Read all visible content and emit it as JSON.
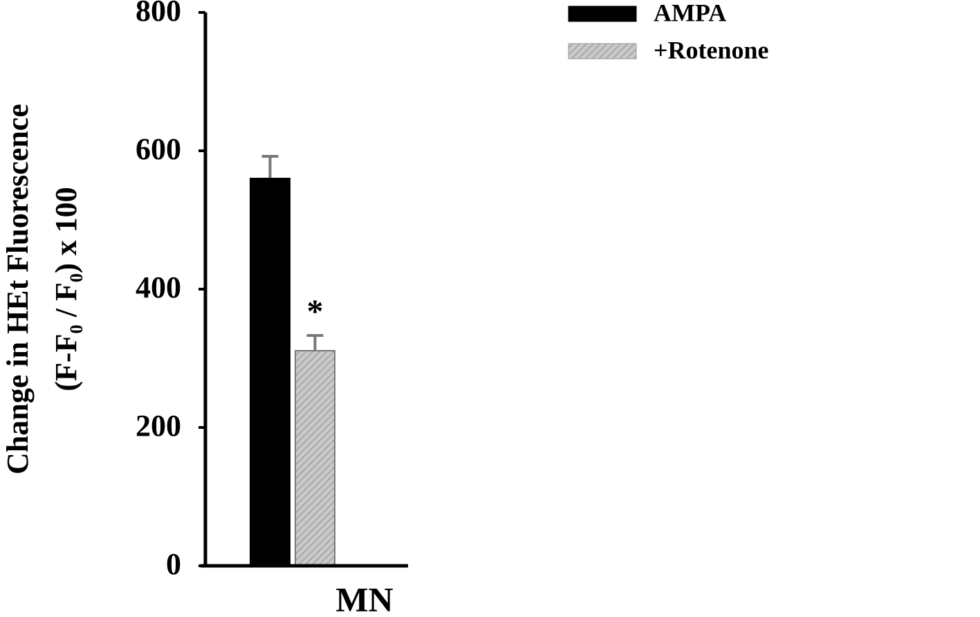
{
  "chart_data": {
    "type": "bar",
    "ylabel": [
      "Change in HEt Fluorescence",
      "(F-F₀ / F₀) x 100"
    ],
    "categories": [
      "MN"
    ],
    "series": [
      {
        "name": "AMPA",
        "color": "#000000",
        "hatch": false,
        "values": [
          560
        ],
        "errors": [
          32
        ]
      },
      {
        "name": "+Rotenone",
        "color": "#c8c8c8",
        "hatch": true,
        "values": [
          311
        ],
        "errors": [
          22
        ]
      }
    ],
    "annotations": [
      {
        "series": 1,
        "text": "*"
      }
    ],
    "ylim": [
      0,
      800
    ],
    "yticks": [
      0,
      200,
      400,
      600,
      800
    ],
    "legend": "top-right"
  }
}
